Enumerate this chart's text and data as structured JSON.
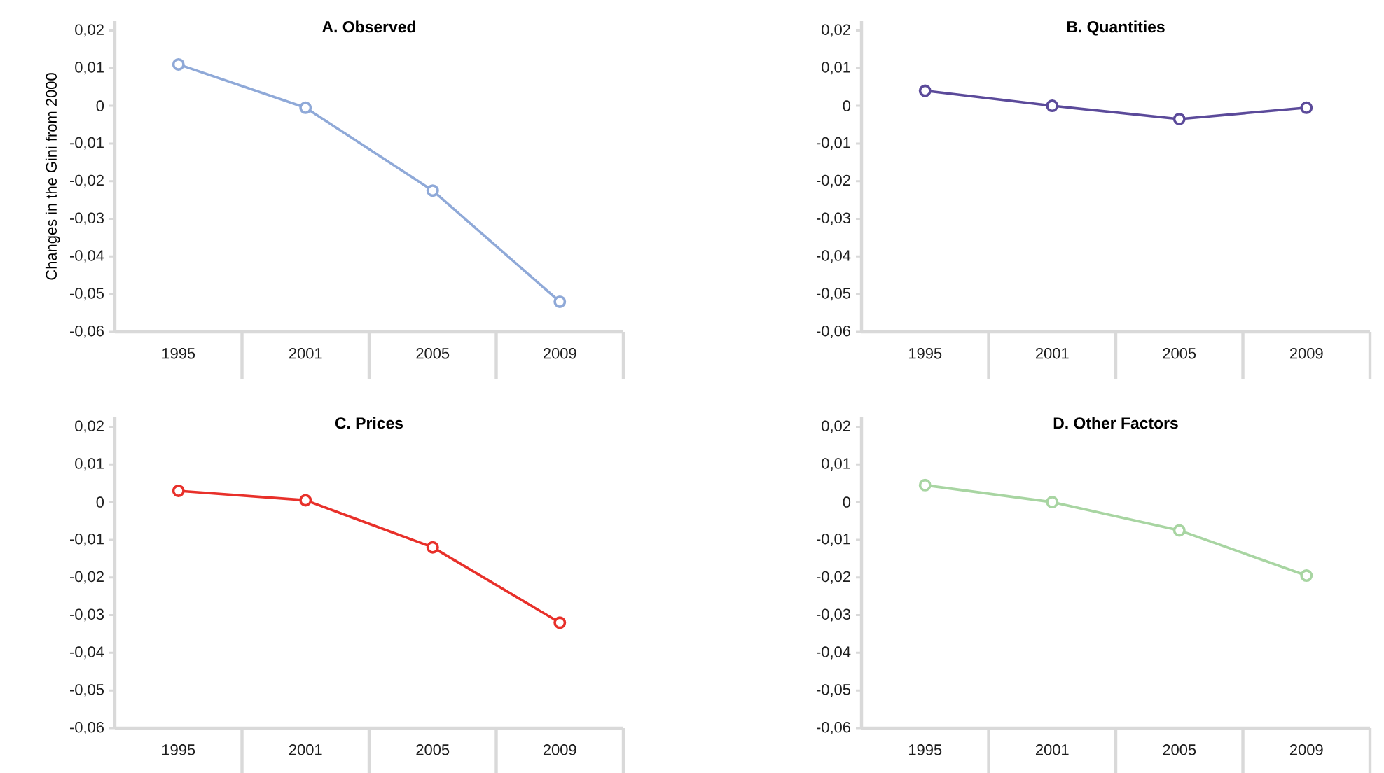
{
  "chart_data": [
    {
      "type": "line",
      "title": "A. Observed",
      "ylabel": "Changes in the Gini from 2000",
      "categories": [
        "1995",
        "2001",
        "2005",
        "2009"
      ],
      "marker": "circle",
      "line_style": "solid",
      "series": [
        {
          "color": "#8fa9d8",
          "values": [
            0.011,
            -0.0005,
            -0.0225,
            -0.052
          ]
        }
      ],
      "ylim": [
        -0.06,
        0.0225
      ],
      "yticks": [
        {
          "value": 0.02,
          "label": "0,02"
        },
        {
          "value": 0.01,
          "label": "0,01"
        },
        0,
        {
          "value": -0.01,
          "label": "-0,01"
        },
        {
          "value": -0.02,
          "label": "-0,02"
        },
        {
          "value": -0.03,
          "label": "-0,03"
        },
        {
          "value": -0.04,
          "label": "-0,04"
        },
        {
          "value": -0.05,
          "label": "-0,05"
        },
        {
          "value": -0.06,
          "label": "-0,06"
        }
      ]
    },
    {
      "type": "line",
      "title": "B. Quantities",
      "categories": [
        "1995",
        "2001",
        "2005",
        "2009"
      ],
      "marker": "circle",
      "line_style": "solid",
      "series": [
        {
          "color": "#5b4a9a",
          "values": [
            0.004,
            0.0,
            -0.0035,
            -0.0005
          ]
        }
      ],
      "ylim": [
        -0.06,
        0.0225
      ],
      "yticks": [
        {
          "value": 0.02,
          "label": "0,02"
        },
        {
          "value": 0.01,
          "label": "0,01"
        },
        0,
        {
          "value": -0.01,
          "label": "-0,01"
        },
        {
          "value": -0.02,
          "label": "-0,02"
        },
        {
          "value": -0.03,
          "label": "-0,03"
        },
        {
          "value": -0.04,
          "label": "-0,04"
        },
        {
          "value": -0.05,
          "label": "-0,05"
        },
        {
          "value": -0.06,
          "label": "-0,06"
        }
      ]
    },
    {
      "type": "line",
      "title": "C. Prices",
      "categories": [
        "1995",
        "2001",
        "2005",
        "2009"
      ],
      "marker": "circle",
      "line_style": "solid",
      "series": [
        {
          "color": "#e8302a",
          "values": [
            0.003,
            0.0005,
            -0.012,
            -0.032
          ]
        }
      ],
      "ylim": [
        -0.06,
        0.0225
      ],
      "yticks": [
        {
          "value": 0.02,
          "label": "0,02"
        },
        {
          "value": 0.01,
          "label": "0,01"
        },
        0,
        {
          "value": -0.01,
          "label": "-0,01"
        },
        {
          "value": -0.02,
          "label": "-0,02"
        },
        {
          "value": -0.03,
          "label": "-0,03"
        },
        {
          "value": -0.04,
          "label": "-0,04"
        },
        {
          "value": -0.05,
          "label": "-0,05"
        },
        {
          "value": -0.06,
          "label": "-0,06"
        }
      ]
    },
    {
      "type": "line",
      "title": "D. Other Factors",
      "categories": [
        "1995",
        "2001",
        "2005",
        "2009"
      ],
      "marker": "circle",
      "line_style": "solid",
      "series": [
        {
          "color": "#a8d5a2",
          "values": [
            0.0045,
            0.0,
            -0.0075,
            -0.0195
          ]
        }
      ],
      "ylim": [
        -0.06,
        0.0225
      ],
      "yticks": [
        {
          "value": 0.02,
          "label": "0,02"
        },
        {
          "value": 0.01,
          "label": "0,01"
        },
        0,
        {
          "value": -0.01,
          "label": "-0,01"
        },
        {
          "value": -0.02,
          "label": "-0,02"
        },
        {
          "value": -0.03,
          "label": "-0,03"
        },
        {
          "value": -0.04,
          "label": "-0,04"
        },
        {
          "value": -0.05,
          "label": "-0,05"
        },
        {
          "value": -0.06,
          "label": "-0,06"
        }
      ]
    }
  ]
}
